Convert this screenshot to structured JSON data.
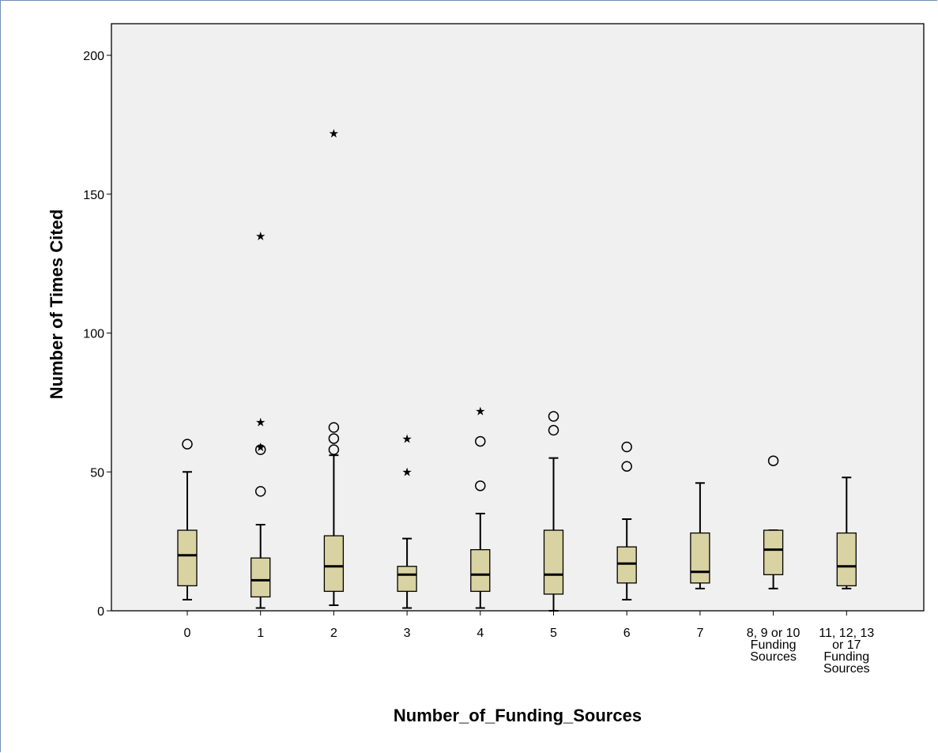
{
  "chart_data": {
    "type": "boxplot",
    "xlabel": "Number_of_Funding_Sources",
    "ylabel": "Number of Times Cited",
    "ylim": [
      0,
      210
    ],
    "yticks": [
      0,
      50,
      100,
      150,
      200
    ],
    "grid": false,
    "colors": {
      "box_fill": "#d9d3a3",
      "plot_bg": "#f0f0f0",
      "frame": "#6f8fb8"
    },
    "categories": [
      {
        "label": [
          "0"
        ],
        "whisker_low": 4,
        "q1": 9,
        "median": 20,
        "q3": 29,
        "whisker_high": 50,
        "outliers": [
          60
        ],
        "extremes": []
      },
      {
        "label": [
          "1"
        ],
        "whisker_low": 1,
        "q1": 5,
        "median": 11,
        "q3": 19,
        "whisker_high": 31,
        "outliers": [
          43,
          58
        ],
        "extremes": [
          60,
          69,
          136
        ]
      },
      {
        "label": [
          "2"
        ],
        "whisker_low": 2,
        "q1": 7,
        "median": 16,
        "q3": 27,
        "whisker_high": 56,
        "outliers": [
          58,
          62,
          66
        ],
        "extremes": [
          173
        ]
      },
      {
        "label": [
          "3"
        ],
        "whisker_low": 1,
        "q1": 7,
        "median": 13,
        "q3": 16,
        "whisker_high": 26,
        "outliers": [],
        "extremes": [
          51,
          63
        ]
      },
      {
        "label": [
          "4"
        ],
        "whisker_low": 1,
        "q1": 7,
        "median": 13,
        "q3": 22,
        "whisker_high": 35,
        "outliers": [
          45,
          61
        ],
        "extremes": [
          73
        ]
      },
      {
        "label": [
          "5"
        ],
        "whisker_low": 0,
        "q1": 6,
        "median": 13,
        "q3": 29,
        "whisker_high": 55,
        "outliers": [
          65,
          70
        ],
        "extremes": []
      },
      {
        "label": [
          "6"
        ],
        "whisker_low": 4,
        "q1": 10,
        "median": 17,
        "q3": 23,
        "whisker_high": 33,
        "outliers": [
          52,
          59
        ],
        "extremes": []
      },
      {
        "label": [
          "7"
        ],
        "whisker_low": 8,
        "q1": 10,
        "median": 14,
        "q3": 28,
        "whisker_high": 46,
        "outliers": [],
        "extremes": []
      },
      {
        "label": [
          "8, 9 or 10",
          "Funding",
          "Sources"
        ],
        "whisker_low": 8,
        "q1": 13,
        "median": 22,
        "q3": 29,
        "whisker_high": 29,
        "outliers": [
          54
        ],
        "extremes": []
      },
      {
        "label": [
          "11, 12, 13",
          "or 17",
          "Funding",
          "Sources"
        ],
        "whisker_low": 8,
        "q1": 9,
        "median": 16,
        "q3": 28,
        "whisker_high": 48,
        "outliers": [],
        "extremes": []
      }
    ]
  }
}
